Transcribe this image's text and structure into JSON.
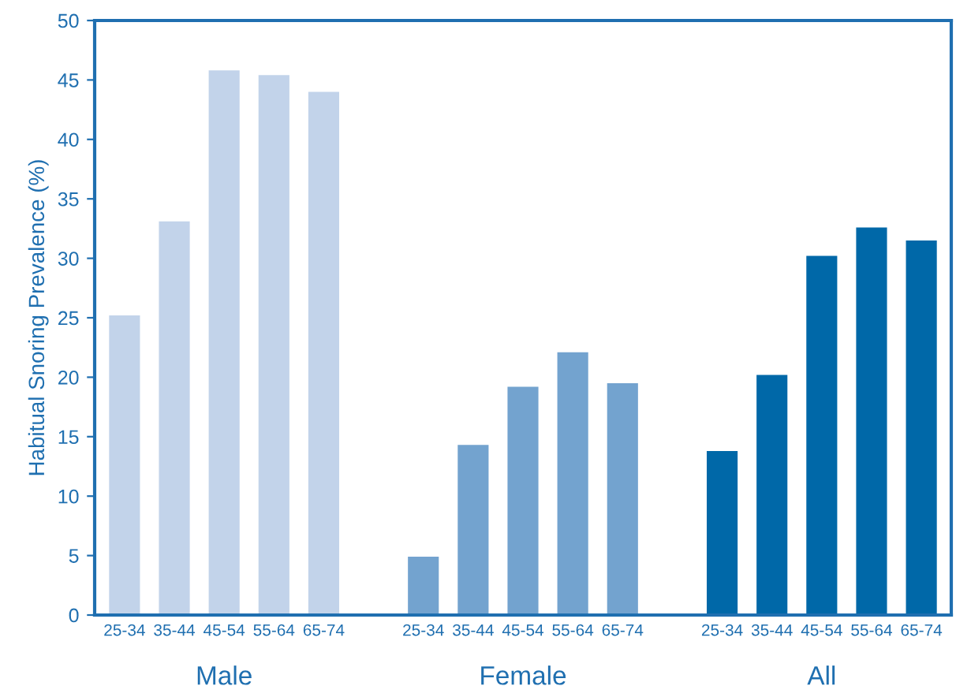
{
  "chart_data": {
    "type": "bar",
    "ylabel": "Habitual Snoring Prevalence (%)",
    "categories": [
      "25-34",
      "35-44",
      "45-54",
      "55-64",
      "65-74",
      null,
      "25-34",
      "35-44",
      "45-54",
      "55-64",
      "65-74",
      null,
      "25-34",
      "35-44",
      "45-54",
      "55-64",
      "65-74"
    ],
    "series": [
      {
        "name": "Male",
        "color": "#c2d3ea",
        "values": [
          25.2,
          33.1,
          45.8,
          45.4,
          44.0,
          null,
          null,
          null,
          null,
          null,
          null,
          null,
          null,
          null,
          null,
          null,
          null
        ]
      },
      {
        "name": "Female",
        "color": "#73a3cf",
        "values": [
          null,
          null,
          null,
          null,
          null,
          null,
          4.9,
          14.3,
          19.2,
          22.1,
          19.5,
          null,
          null,
          null,
          null,
          null,
          null
        ]
      },
      {
        "name": "All",
        "color": "#0068a8",
        "values": [
          null,
          null,
          null,
          null,
          null,
          null,
          null,
          null,
          null,
          null,
          null,
          null,
          13.8,
          20.2,
          30.2,
          32.6,
          31.5
        ]
      }
    ],
    "ylim": [
      0,
      50
    ],
    "yticks": [
      0,
      5,
      10,
      15,
      20,
      25,
      30,
      35,
      40,
      45,
      50
    ],
    "grid": false,
    "legend": false
  }
}
